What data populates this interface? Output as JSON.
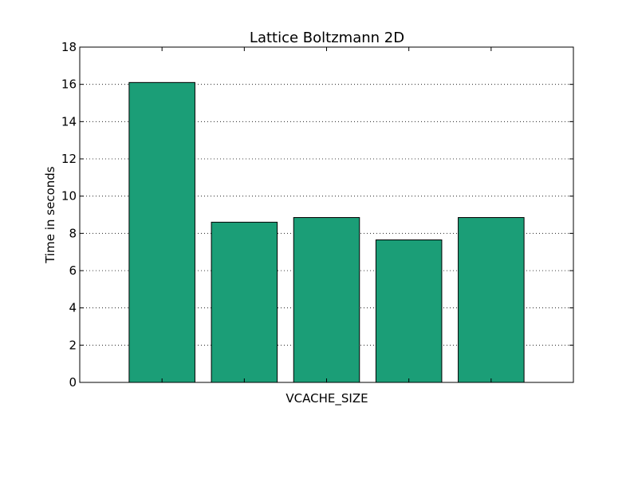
{
  "chart_data": {
    "type": "bar",
    "title": "Lattice Boltzmann 2D",
    "xlabel": "VCACHE_SIZE",
    "ylabel": "Time in seconds",
    "categories": [
      "",
      "",
      "",
      "",
      ""
    ],
    "values": [
      16.1,
      8.6,
      8.85,
      7.65,
      8.85
    ],
    "ylim": [
      0,
      18
    ],
    "yticks": [
      "0",
      "2",
      "4",
      "6",
      "8",
      "10",
      "12",
      "14",
      "16",
      "18"
    ],
    "grid": "horizontal dotted",
    "bar_color": "#1b9e77",
    "edge_color": "#000000"
  }
}
